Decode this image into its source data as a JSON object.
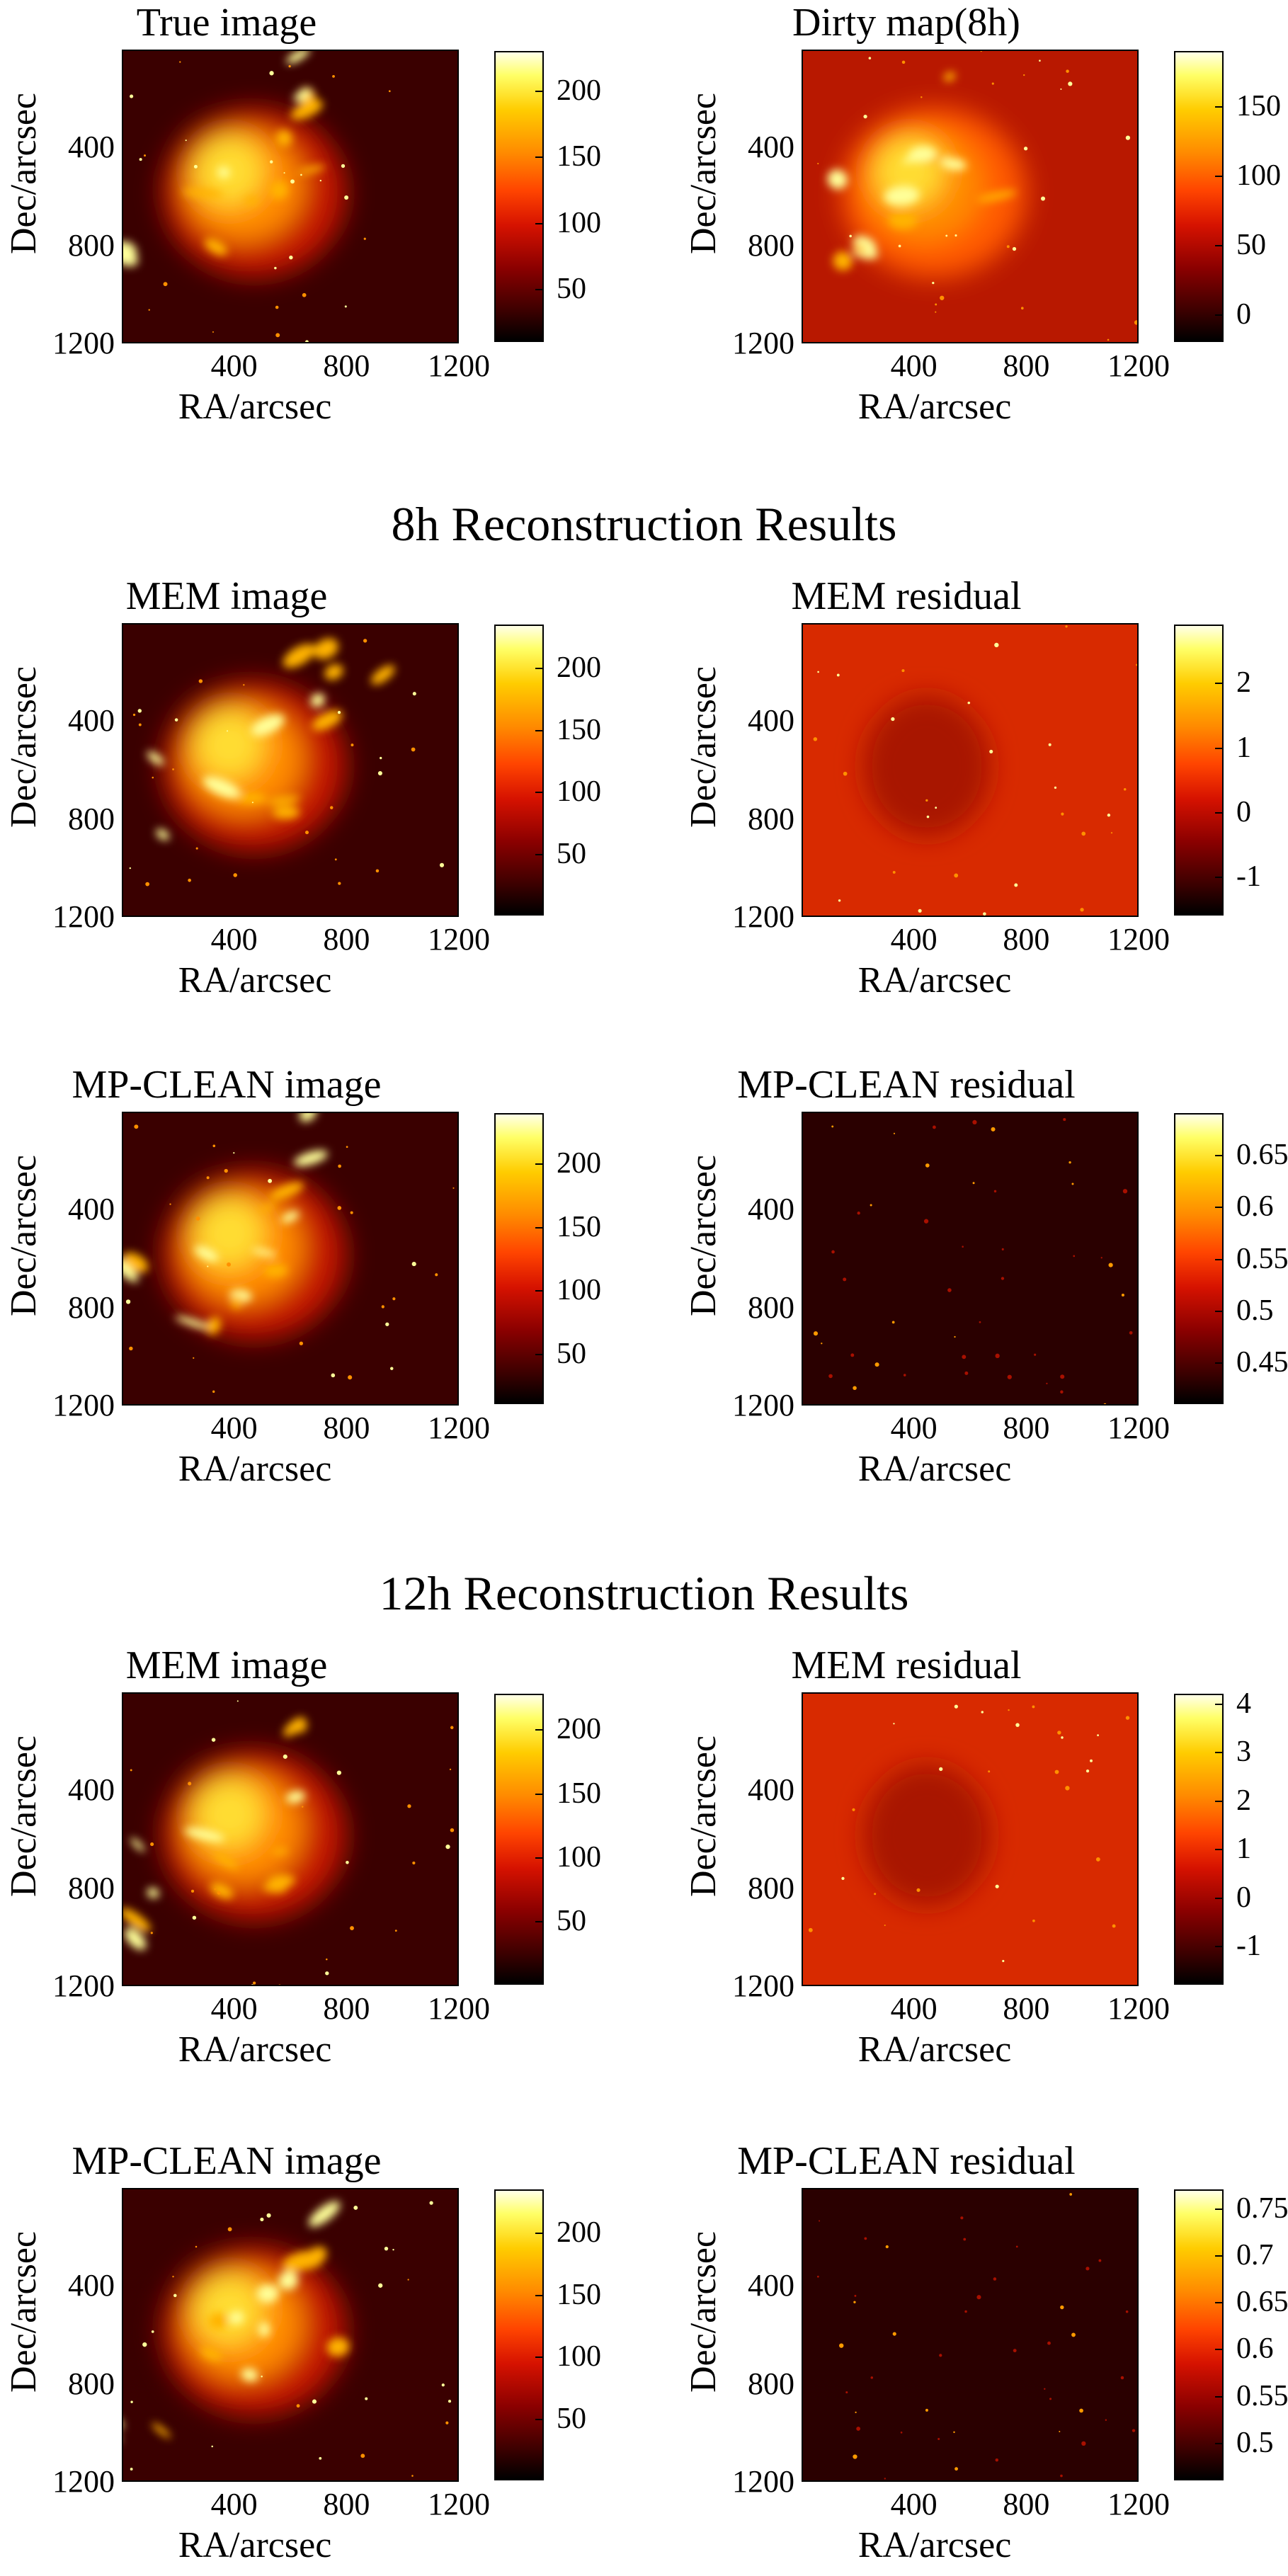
{
  "section_titles": {
    "8h": "8h Reconstruction Results",
    "12h": "12h Reconstruction Results"
  },
  "axis": {
    "xlabel": "RA/arcsec",
    "ylabel": "Dec/arcsec",
    "xticks": [
      "400",
      "800",
      "1200"
    ],
    "yticks": [
      "400",
      "800",
      "1200"
    ]
  },
  "colormap": [
    "#000000",
    "#8a0000",
    "#ff2a00",
    "#ff9a00",
    "#ffff80"
  ],
  "chart_data": [
    {
      "id": "true-image",
      "type": "heatmap",
      "title": "True image",
      "xlabel": "RA/arcsec",
      "ylabel": "Dec/arcsec",
      "xlim": [
        0,
        1200
      ],
      "ylim": [
        1200,
        0
      ],
      "colorbar_ticks": [
        "50",
        "100",
        "150",
        "200"
      ],
      "colorbar_range": [
        10,
        230
      ]
    },
    {
      "id": "dirty-map",
      "type": "heatmap",
      "title": "Dirty map(8h)",
      "xlabel": "RA/arcsec",
      "ylabel": "Dec/arcsec",
      "xlim": [
        0,
        1200
      ],
      "ylim": [
        1200,
        0
      ],
      "colorbar_ticks": [
        "0",
        "50",
        "100",
        "150"
      ],
      "colorbar_range": [
        -20,
        190
      ]
    },
    {
      "id": "mem-image-8h",
      "type": "heatmap",
      "title": "MEM image",
      "xlabel": "RA/arcsec",
      "ylabel": "Dec/arcsec",
      "xlim": [
        0,
        1200
      ],
      "ylim": [
        1200,
        0
      ],
      "colorbar_ticks": [
        "50",
        "100",
        "150",
        "200"
      ],
      "colorbar_range": [
        0,
        235
      ]
    },
    {
      "id": "mem-residual-8h",
      "type": "heatmap",
      "title": "MEM residual",
      "xlabel": "RA/arcsec",
      "ylabel": "Dec/arcsec",
      "xlim": [
        0,
        1200
      ],
      "ylim": [
        1200,
        0
      ],
      "colorbar_ticks": [
        "-1",
        "0",
        "1",
        "2"
      ],
      "colorbar_range": [
        -1.6,
        2.9
      ]
    },
    {
      "id": "mpclean-image-8h",
      "type": "heatmap",
      "title": "MP-CLEAN image",
      "xlabel": "RA/arcsec",
      "ylabel": "Dec/arcsec",
      "xlim": [
        0,
        1200
      ],
      "ylim": [
        1200,
        0
      ],
      "colorbar_ticks": [
        "50",
        "100",
        "150",
        "200"
      ],
      "colorbar_range": [
        10,
        240
      ]
    },
    {
      "id": "mpclean-residual-8h",
      "type": "heatmap",
      "title": "MP-CLEAN residual",
      "xlabel": "RA/arcsec",
      "ylabel": "Dec/arcsec",
      "xlim": [
        0,
        1200
      ],
      "ylim": [
        1200,
        0
      ],
      "colorbar_ticks": [
        "0.45",
        "0.5",
        "0.55",
        "0.6",
        "0.65"
      ],
      "colorbar_range": [
        0.41,
        0.69
      ]
    },
    {
      "id": "mem-image-12h",
      "type": "heatmap",
      "title": "MEM image",
      "xlabel": "RA/arcsec",
      "ylabel": "Dec/arcsec",
      "xlim": [
        0,
        1200
      ],
      "ylim": [
        1200,
        0
      ],
      "colorbar_ticks": [
        "50",
        "100",
        "150",
        "200"
      ],
      "colorbar_range": [
        0,
        228
      ]
    },
    {
      "id": "mem-residual-12h",
      "type": "heatmap",
      "title": "MEM residual",
      "xlabel": "RA/arcsec",
      "ylabel": "Dec/arcsec",
      "xlim": [
        0,
        1200
      ],
      "ylim": [
        1200,
        0
      ],
      "colorbar_ticks": [
        "-1",
        "0",
        "1",
        "2",
        "3",
        "4"
      ],
      "colorbar_range": [
        -1.8,
        4.2
      ]
    },
    {
      "id": "mpclean-image-12h",
      "type": "heatmap",
      "title": "MP-CLEAN image",
      "xlabel": "RA/arcsec",
      "ylabel": "Dec/arcsec",
      "xlim": [
        0,
        1200
      ],
      "ylim": [
        1200,
        0
      ],
      "colorbar_ticks": [
        "50",
        "100",
        "150",
        "200"
      ],
      "colorbar_range": [
        0,
        235
      ]
    },
    {
      "id": "mpclean-residual-12h",
      "type": "heatmap",
      "title": "MP-CLEAN residual",
      "xlabel": "RA/arcsec",
      "ylabel": "Dec/arcsec",
      "xlim": [
        0,
        1200
      ],
      "ylim": [
        1200,
        0
      ],
      "colorbar_ticks": [
        "0.5",
        "0.55",
        "0.6",
        "0.65",
        "0.7",
        "0.75"
      ],
      "colorbar_range": [
        0.46,
        0.77
      ]
    }
  ]
}
